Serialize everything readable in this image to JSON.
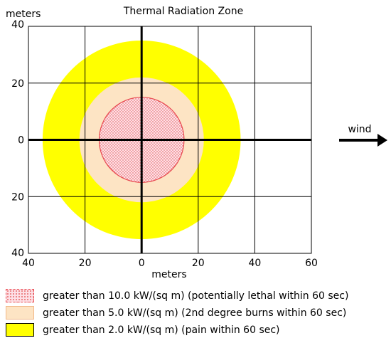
{
  "chart_data": {
    "type": "area",
    "title": "Thermal Radiation Zone",
    "ylabel": "meters",
    "xlabel": "meters",
    "xlim": [
      -40,
      60
    ],
    "ylim": [
      -40,
      40
    ],
    "x_ticks": [
      -40,
      -20,
      0,
      20,
      40,
      60
    ],
    "x_tick_labels": [
      "40",
      "20",
      "0",
      "20",
      "40",
      "60"
    ],
    "y_ticks": [
      40,
      20,
      0,
      -20,
      -40
    ],
    "y_tick_labels": [
      "40",
      "20",
      "0",
      "20",
      "40"
    ],
    "grid": true,
    "zones": [
      {
        "name": "greater than 2.0 kW/(sq m) (pain within 60 sec)",
        "threshold_kw_per_sq_m": 2.0,
        "radius_m": 35,
        "center": [
          0,
          0
        ],
        "fill": "#ffff00",
        "pattern": "solid"
      },
      {
        "name": "greater than 5.0 kW/(sq m) (2nd degree burns within 60 sec)",
        "threshold_kw_per_sq_m": 5.0,
        "radius_m": 22,
        "center": [
          0,
          0
        ],
        "fill": "#fde4c4",
        "pattern": "solid"
      },
      {
        "name": "greater than 10.0 kW/(sq m) (potentially lethal within 60 sec)",
        "threshold_kw_per_sq_m": 10.0,
        "radius_m": 15,
        "center": [
          0,
          0
        ],
        "fill": "#fde0e6",
        "pattern": "dots",
        "dot_color": "#e24a4a",
        "outline": "#e8484f"
      }
    ],
    "wind_label": "wind",
    "legend": [
      {
        "label": "greater than 10.0 kW/(sq m) (potentially lethal within 60 sec)",
        "fill": "#fde0e6",
        "border": "#e8484f",
        "pattern": "dots"
      },
      {
        "label": "greater than 5.0 kW/(sq m) (2nd degree burns within 60 sec)",
        "fill": "#fde4c4",
        "border": "#f2b98a",
        "pattern": "solid"
      },
      {
        "label": "greater than 2.0 kW/(sq m) (pain within 60 sec)",
        "fill": "#ffff00",
        "border": "#000000",
        "pattern": "solid"
      }
    ]
  }
}
